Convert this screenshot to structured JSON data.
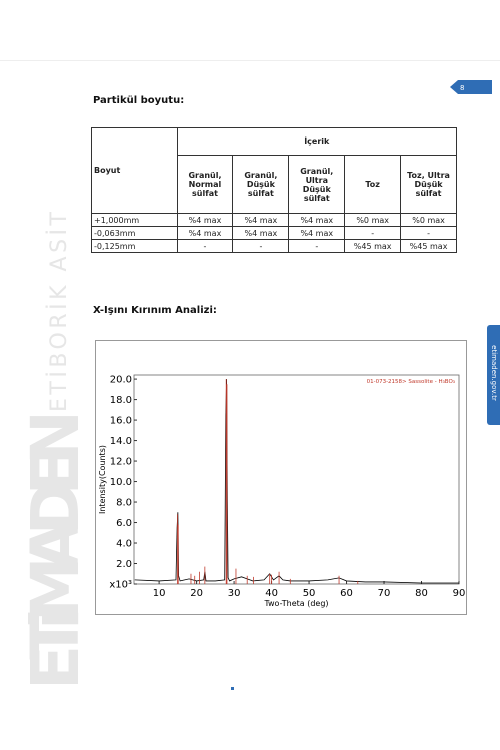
{
  "page_number": "8",
  "side_label": "etimaden.gov.tr",
  "watermark": {
    "brand": "ETiMADEN",
    "company": "ETİBORİK ASİT"
  },
  "section1": {
    "title": "Partikül boyutu:"
  },
  "table": {
    "header": "Boyut",
    "group_header": "İçerik",
    "columns": [
      "Granül, Normal sülfat",
      "Granül, Düşük sülfat",
      "Granül, Ultra Düşük sülfat",
      "Toz",
      "Toz, Ultra Düşük sülfat"
    ],
    "rows": [
      [
        "+1,000mm",
        "%4 max",
        "%4 max",
        "%4 max",
        "%0 max",
        "%0 max"
      ],
      [
        "-0,063mm",
        "%4 max",
        "%4 max",
        "%4 max",
        "-",
        "-"
      ],
      [
        "-0,125mm",
        "-",
        "-",
        "-",
        "%45 max",
        "%45 max"
      ]
    ]
  },
  "section2": {
    "title": "X-Işını Kırınım Analizi:"
  },
  "chart_data": {
    "type": "line",
    "x_label": "Two-Theta (deg)",
    "y_label": "Intensity(Counts)",
    "xlim": [
      3.3,
      90
    ],
    "ylim": [
      0,
      20.4
    ],
    "xticks": [
      10,
      20,
      30,
      40,
      50,
      60,
      70,
      80,
      90
    ],
    "yticks": [
      {
        "value": 0,
        "label": "x10³"
      },
      {
        "value": 2,
        "label": "2.0"
      },
      {
        "value": 4,
        "label": "4.0"
      },
      {
        "value": 6,
        "label": "6.0"
      },
      {
        "value": 8,
        "label": "8.0"
      },
      {
        "value": 10,
        "label": "10.0"
      },
      {
        "value": 12,
        "label": "12.0"
      },
      {
        "value": 14,
        "label": "14.0"
      },
      {
        "value": 16,
        "label": "16.0"
      },
      {
        "value": 18,
        "label": "18.0"
      },
      {
        "value": 20,
        "label": "20.0"
      }
    ],
    "series": [
      {
        "color": "#000000",
        "x": [
          3.5,
          10,
          14.5,
          14.8,
          15.0,
          15.2,
          15.6,
          18,
          20,
          21.9,
          22.2,
          22.5,
          25,
          27.5,
          27.8,
          28.0,
          28.2,
          28.4,
          28.8,
          30,
          32,
          33.5,
          35,
          38,
          39.5,
          40.5,
          42,
          43,
          45,
          50,
          55,
          58,
          60,
          65,
          70,
          80,
          90
        ],
        "values": [
          0.4,
          0.3,
          0.4,
          5.5,
          7.0,
          0.8,
          0.3,
          0.5,
          0.3,
          0.4,
          1.2,
          0.3,
          0.3,
          0.4,
          16.5,
          20.0,
          8.0,
          0.6,
          0.3,
          0.5,
          0.7,
          0.5,
          0.3,
          0.4,
          1.0,
          0.4,
          0.8,
          0.4,
          0.3,
          0.3,
          0.4,
          0.6,
          0.3,
          0.2,
          0.2,
          0.1,
          0.1
        ]
      },
      {
        "name": "01-073-2158> Sassolite - H₃BO₃",
        "color": "#c0392b",
        "x": [
          14.9,
          15.1,
          18.5,
          19.5,
          20.8,
          22.2,
          27.9,
          28.1,
          30.5,
          33.5,
          35.2,
          39.5,
          40.0,
          42.0,
          45.0,
          58.0,
          63.0
        ],
        "values": [
          6.8,
          5.8,
          1.0,
          0.8,
          1.2,
          1.7,
          20.0,
          19.5,
          1.5,
          0.8,
          0.7,
          1.0,
          0.9,
          1.2,
          0.5,
          0.8,
          0.3
        ]
      }
    ]
  }
}
